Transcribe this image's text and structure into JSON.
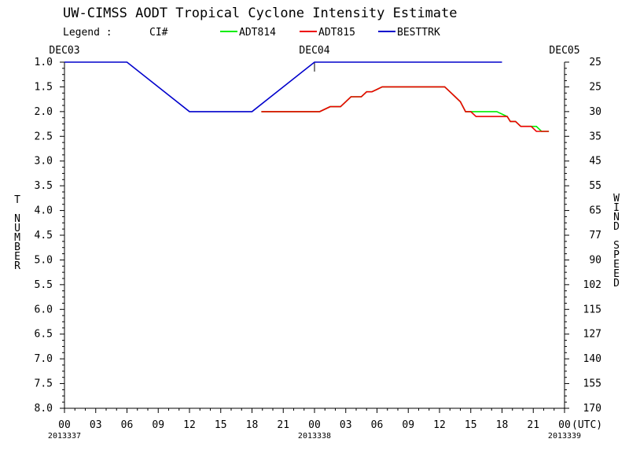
{
  "chart_data": {
    "type": "line",
    "title": "UW-CIMSS AODT Tropical Cyclone Intensity Estimate",
    "legend": {
      "label": "Legend :",
      "ci_label": "CI#",
      "placement": "top"
    },
    "ylabel_left": "T NUMBER",
    "ylabel_right": "WIND SPEED",
    "x_unit": "(UTC)",
    "y_inverted": true,
    "ylim": [
      1.0,
      8.0
    ],
    "y_ticks": [
      "1.0",
      "1.5",
      "2.0",
      "2.5",
      "3.0",
      "3.5",
      "4.0",
      "4.5",
      "5.0",
      "5.5",
      "6.0",
      "6.5",
      "7.0",
      "7.5",
      "8.0"
    ],
    "y_tick_values": [
      1.0,
      1.5,
      2.0,
      2.5,
      3.0,
      3.5,
      4.0,
      4.5,
      5.0,
      5.5,
      6.0,
      6.5,
      7.0,
      7.5,
      8.0
    ],
    "y2_ticks": [
      "25",
      "25",
      "30",
      "35",
      "45",
      "55",
      "65",
      "77",
      "90",
      "102",
      "115",
      "127",
      "140",
      "155",
      "170"
    ],
    "xlim": [
      0,
      48
    ],
    "x_tick_values": [
      0,
      3,
      6,
      9,
      12,
      15,
      18,
      21,
      24,
      27,
      30,
      33,
      36,
      39,
      42,
      45,
      48
    ],
    "x_ticks": [
      "00",
      "03",
      "06",
      "09",
      "12",
      "15",
      "18",
      "21",
      "00",
      "03",
      "06",
      "09",
      "12",
      "15",
      "18",
      "21",
      "00"
    ],
    "x_end_label": "(UTC)",
    "day_labels": [
      {
        "x": 0,
        "text": "DEC03"
      },
      {
        "x": 24,
        "text": "DEC04"
      },
      {
        "x": 48,
        "text": "DEC05"
      }
    ],
    "date_labels": [
      {
        "x": 0,
        "text": "2013337"
      },
      {
        "x": 24,
        "text": "2013338"
      },
      {
        "x": 48,
        "text": "2013339"
      }
    ],
    "series": [
      {
        "name": "ADT814",
        "color": "#00ee00",
        "points": [
          [
            18.9,
            2.0
          ],
          [
            24.5,
            2.0
          ],
          [
            25.5,
            1.9
          ],
          [
            26.0,
            1.9
          ],
          [
            26.5,
            1.9
          ],
          [
            27.0,
            1.8
          ],
          [
            27.5,
            1.7
          ],
          [
            28.5,
            1.7
          ],
          [
            29.0,
            1.6
          ],
          [
            29.5,
            1.6
          ],
          [
            30.0,
            1.55
          ],
          [
            30.5,
            1.5
          ],
          [
            36.5,
            1.5
          ],
          [
            37.0,
            1.6
          ],
          [
            37.5,
            1.7
          ],
          [
            38.0,
            1.8
          ],
          [
            38.5,
            2.0
          ],
          [
            41.5,
            2.0
          ],
          [
            42.5,
            2.1
          ],
          [
            42.8,
            2.2
          ],
          [
            43.3,
            2.2
          ],
          [
            43.8,
            2.3
          ],
          [
            45.0,
            2.3
          ],
          [
            45.3,
            2.3
          ],
          [
            45.8,
            2.4
          ],
          [
            46.5,
            2.4
          ]
        ]
      },
      {
        "name": "ADT815",
        "color": "#ee0000",
        "points": [
          [
            18.9,
            2.0
          ],
          [
            24.5,
            2.0
          ],
          [
            25.5,
            1.9
          ],
          [
            26.0,
            1.9
          ],
          [
            26.5,
            1.9
          ],
          [
            27.0,
            1.8
          ],
          [
            27.5,
            1.7
          ],
          [
            28.5,
            1.7
          ],
          [
            29.0,
            1.6
          ],
          [
            29.5,
            1.6
          ],
          [
            30.0,
            1.55
          ],
          [
            30.5,
            1.5
          ],
          [
            36.5,
            1.5
          ],
          [
            37.0,
            1.6
          ],
          [
            37.5,
            1.7
          ],
          [
            38.0,
            1.8
          ],
          [
            38.5,
            2.0
          ],
          [
            39.0,
            2.0
          ],
          [
            39.5,
            2.1
          ],
          [
            42.0,
            2.1
          ],
          [
            42.5,
            2.1
          ],
          [
            42.8,
            2.2
          ],
          [
            43.3,
            2.2
          ],
          [
            43.8,
            2.3
          ],
          [
            44.8,
            2.3
          ],
          [
            45.3,
            2.4
          ],
          [
            46.5,
            2.4
          ]
        ]
      },
      {
        "name": "BESTTRK",
        "color": "#0000cc",
        "points": [
          [
            0,
            1.0
          ],
          [
            6,
            1.0
          ],
          [
            12,
            2.0
          ],
          [
            18,
            2.0
          ],
          [
            24,
            1.0
          ],
          [
            42,
            1.0
          ]
        ]
      }
    ]
  }
}
